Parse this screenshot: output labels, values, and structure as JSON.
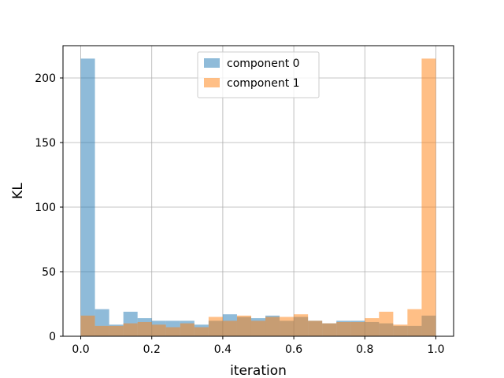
{
  "chart_data": {
    "type": "bar",
    "subtype": "histogram",
    "title": "",
    "xlabel": "iteration",
    "ylabel": "KL",
    "xlim": [
      -0.05,
      1.05
    ],
    "ylim": [
      0,
      225
    ],
    "xticks": [
      0.0,
      0.2,
      0.4,
      0.6,
      0.8,
      1.0
    ],
    "xtick_labels": [
      "0.0",
      "0.2",
      "0.4",
      "0.6",
      "0.8",
      "1.0"
    ],
    "yticks": [
      0,
      50,
      100,
      150,
      200
    ],
    "ytick_labels": [
      "0",
      "50",
      "100",
      "150",
      "200"
    ],
    "grid": true,
    "legend_position": "top-center",
    "bins": 25,
    "bin_range": [
      0,
      1
    ],
    "series": [
      {
        "name": "component 0",
        "color": "#1f77b4",
        "alpha": 0.5,
        "values": [
          215,
          21,
          9,
          19,
          14,
          12,
          12,
          12,
          9,
          12,
          17,
          15,
          14,
          16,
          12,
          15,
          12,
          10,
          12,
          12,
          11,
          10,
          8,
          8,
          16
        ]
      },
      {
        "name": "component 1",
        "color": "#ff7f0e",
        "alpha": 0.5,
        "values": [
          16,
          8,
          8,
          10,
          11,
          9,
          7,
          10,
          7,
          15,
          12,
          16,
          12,
          15,
          15,
          17,
          12,
          10,
          11,
          11,
          14,
          19,
          9,
          21,
          215
        ]
      }
    ]
  }
}
